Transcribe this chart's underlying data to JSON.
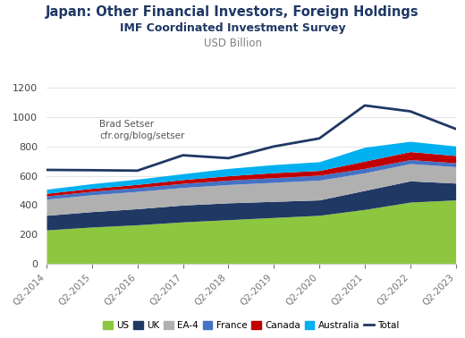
{
  "title": "Japan: Other Financial Investors, Foreign Holdings",
  "subtitle": "IMF Coordinated Investment Survey",
  "subtitle2": "USD Billion",
  "watermark": "Brad Setser\ncfr.org/blog/setser",
  "x_labels": [
    "Q2-2014",
    "Q2-2015",
    "Q2-2016",
    "Q2-2017",
    "Q2-2018",
    "Q2-2019",
    "Q2-2020",
    "Q2-2021",
    "Q2-2022",
    "Q2-2023"
  ],
  "US": [
    230,
    250,
    265,
    285,
    300,
    315,
    330,
    370,
    420,
    435
  ],
  "UK": [
    100,
    105,
    110,
    115,
    115,
    110,
    105,
    130,
    145,
    115
  ],
  "EA4": [
    110,
    115,
    118,
    120,
    125,
    130,
    135,
    120,
    118,
    112
  ],
  "France": [
    22,
    24,
    26,
    28,
    30,
    32,
    34,
    30,
    27,
    26
  ],
  "Canada": [
    18,
    20,
    22,
    26,
    30,
    34,
    32,
    50,
    55,
    50
  ],
  "Australia": [
    28,
    32,
    36,
    40,
    50,
    55,
    60,
    95,
    70,
    65
  ],
  "Total": [
    640,
    638,
    635,
    740,
    720,
    800,
    855,
    1080,
    1040,
    920
  ],
  "colors": {
    "US": "#8dc63f",
    "UK": "#1f3864",
    "EA4": "#b0b0b0",
    "France": "#4472c4",
    "Canada": "#c00000",
    "Australia": "#00b0f0",
    "Total": "#1f3864"
  },
  "ylim": [
    0,
    1200
  ],
  "yticks": [
    0,
    200,
    400,
    600,
    800,
    1000,
    1200
  ],
  "bg_color": "#ffffff",
  "title_color": "#1f3864",
  "subtitle_color": "#1f3864",
  "subtitle2_color": "#808080"
}
